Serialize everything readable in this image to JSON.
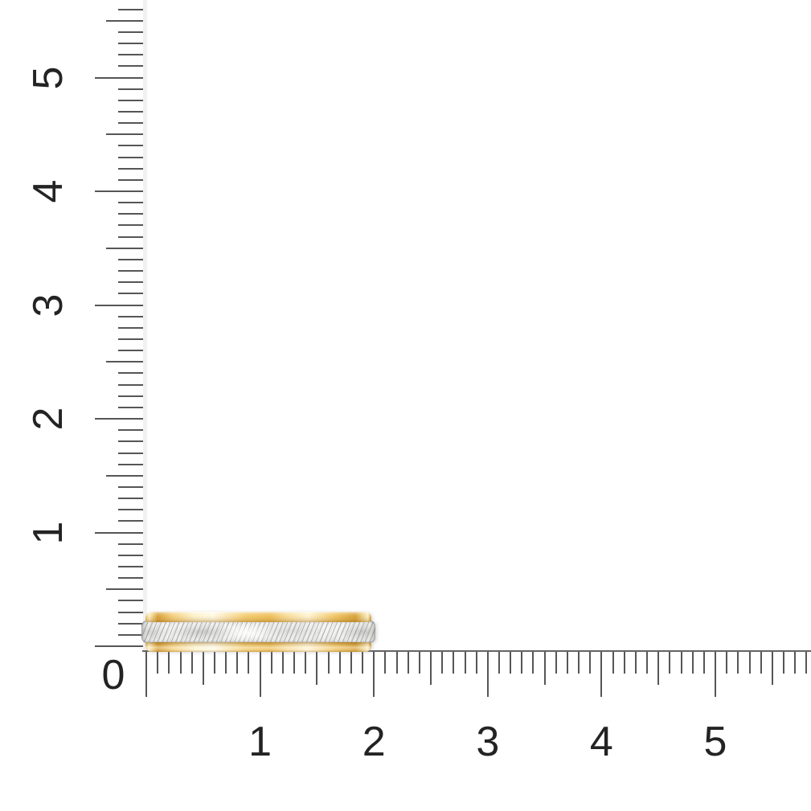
{
  "page": {
    "background": "#ffffff"
  },
  "rulers": {
    "origin_label": "0",
    "vertical": {
      "labels": [
        {
          "text": "5",
          "cm": 5
        },
        {
          "text": "4",
          "cm": 4
        },
        {
          "text": "3",
          "cm": 3
        },
        {
          "text": "2",
          "cm": 2
        },
        {
          "text": "1",
          "cm": 1
        }
      ],
      "ticks": {
        "count": 57,
        "minor_per_cm": 10,
        "medium_every_mm": 5,
        "major_every_mm": 10
      }
    },
    "horizontal": {
      "labels": [
        {
          "text": "1",
          "cm": 1
        },
        {
          "text": "2",
          "cm": 2
        },
        {
          "text": "3",
          "cm": 3
        },
        {
          "text": "4",
          "cm": 4
        },
        {
          "text": "5",
          "cm": 5
        }
      ],
      "ticks": {
        "count": 59,
        "minor_per_cm": 10,
        "medium_every_mm": 5,
        "major_every_mm": 10
      }
    }
  },
  "ring": {
    "outer_width_cm": 2,
    "materials": [
      "yellow-gold-edge",
      "diamond-cut-silver-center",
      "yellow-gold-edge"
    ]
  },
  "colors": {
    "background": "#ffffff",
    "tick": "#565656",
    "baseline": "#646464",
    "rail": "#f1f1f1",
    "digit": "#232323",
    "gold_light": "#fdf2cd",
    "gold_mid": "#f2c96e",
    "gold_dark": "#cf9a33",
    "silver_base": "#f2f2f0",
    "silver_hatch": "#7d7d7a"
  }
}
